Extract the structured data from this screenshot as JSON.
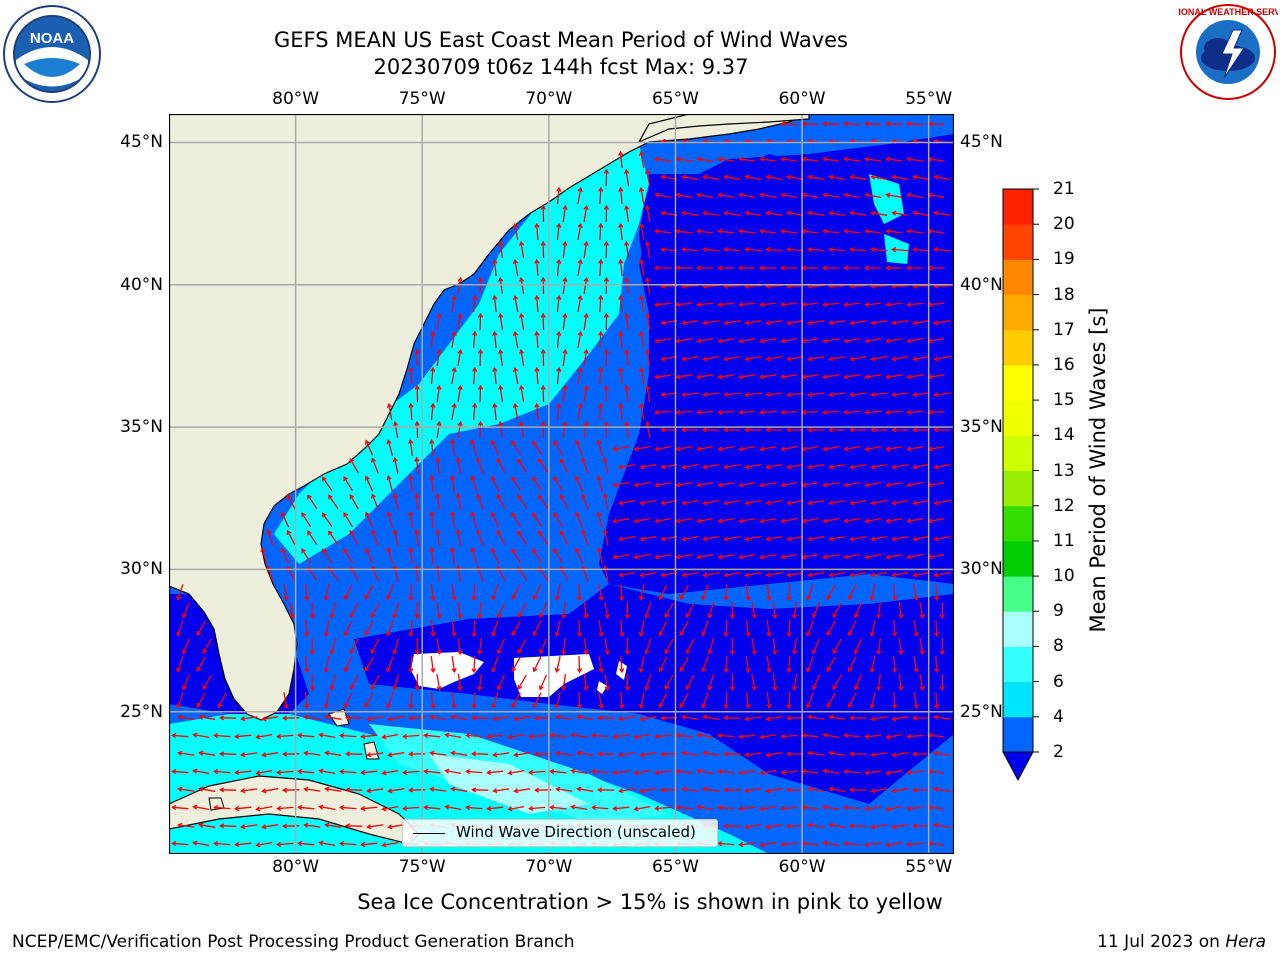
{
  "header": {
    "title_line1": "GEFS MEAN US East Coast Mean Period of Wind Waves",
    "title_line2": "20230709 t06z 144h fcst   Max: 9.37"
  },
  "logos": {
    "left": {
      "icon": "noaa-logo",
      "text": "NOAA"
    },
    "right": {
      "icon": "national-weather-service-logo",
      "text": "NATIONAL WEATHER SERVICE"
    }
  },
  "map": {
    "lon_ticks": [
      "80°W",
      "75°W",
      "70°W",
      "65°W",
      "60°W",
      "55°W"
    ],
    "lat_ticks": [
      "45°N",
      "40°N",
      "35°N",
      "30°N",
      "25°N"
    ],
    "lon_range": [
      -85,
      -54
    ],
    "lat_range": [
      20,
      46
    ],
    "graticule": "on",
    "legend": {
      "label": "Wind Wave Direction (unscaled)",
      "position": "bottom-center"
    },
    "colors": {
      "land": "#eeeedd",
      "grid": "#aaaaaa",
      "arrows": "#ff0000"
    }
  },
  "colorbar": {
    "title": "Mean Period of Wind Waves [s]",
    "ticks": [
      "2",
      "4",
      "6",
      "8",
      "9",
      "10",
      "11",
      "12",
      "13",
      "14",
      "15",
      "16",
      "17",
      "18",
      "19",
      "20",
      "21"
    ],
    "colors": [
      "#0066ff",
      "#00e5ff",
      "#33ffff",
      "#aaffff",
      "#44ff88",
      "#00cc00",
      "#33dd00",
      "#99ee00",
      "#ccff00",
      "#eeff00",
      "#ffff00",
      "#ffcc00",
      "#ffaa00",
      "#ff8800",
      "#ff4400",
      "#ff2200",
      "#ff0000"
    ],
    "extend_color": "#0000ee"
  },
  "footer": {
    "note": "Sea Ice Concentration > 15% is shown in pink to yellow",
    "credit": "NCEP/EMC/Verification Post Processing Product Generation Branch",
    "date": "11 Jul 2023 on ",
    "machine": "Hera"
  }
}
